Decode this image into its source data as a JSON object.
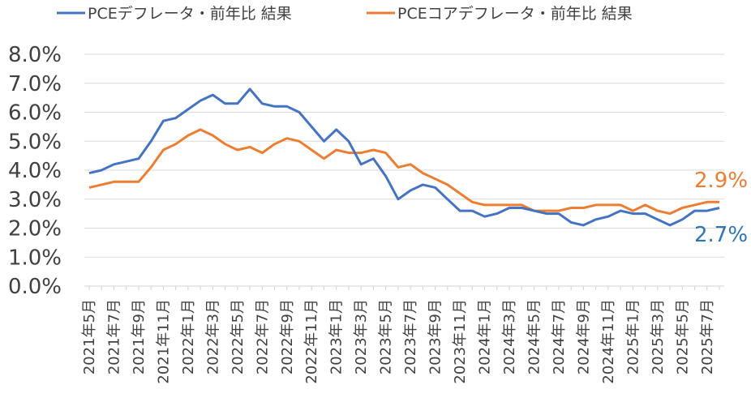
{
  "chart_data": {
    "type": "line",
    "title": "",
    "xlabel": "",
    "ylabel": "",
    "ylim": [
      0,
      8
    ],
    "y_ticks": [
      "0.0%",
      "1.0%",
      "2.0%",
      "3.0%",
      "4.0%",
      "5.0%",
      "6.0%",
      "7.0%",
      "8.0%"
    ],
    "grid": true,
    "legend_position": "top",
    "x_tick_labels": [
      "2021年5月",
      "2021年7月",
      "2021年9月",
      "2021年11月",
      "2022年1月",
      "2022年3月",
      "2022年5月",
      "2022年7月",
      "2022年9月",
      "2022年11月",
      "2023年1月",
      "2023年3月",
      "2023年5月",
      "2023年7月",
      "2023年9月",
      "2023年11月",
      "2024年1月",
      "2024年3月",
      "2024年5月",
      "2024年7月",
      "2024年9月",
      "2024年11月",
      "2025年1月",
      "2025年3月",
      "2025年5月",
      "2025年7月"
    ],
    "series": [
      {
        "name": "PCEデフレータ・前年比 結果",
        "color": "#4472C4",
        "end_label": "2.7%",
        "end_label_color": "#2E75B6",
        "values": [
          3.9,
          4.0,
          4.2,
          4.3,
          4.4,
          5.0,
          5.7,
          5.8,
          6.1,
          6.4,
          6.6,
          6.3,
          6.3,
          6.8,
          6.3,
          6.2,
          6.2,
          6.0,
          5.5,
          5.0,
          5.4,
          5.0,
          4.2,
          4.4,
          3.8,
          3.0,
          3.3,
          3.5,
          3.4,
          3.0,
          2.6,
          2.6,
          2.4,
          2.5,
          2.7,
          2.7,
          2.6,
          2.5,
          2.5,
          2.2,
          2.1,
          2.3,
          2.4,
          2.6,
          2.5,
          2.5,
          2.3,
          2.1,
          2.3,
          2.6,
          2.6,
          2.7
        ]
      },
      {
        "name": "PCEコアデフレータ・前年比 結果",
        "color": "#ED7D31",
        "end_label": "2.9%",
        "end_label_color": "#ED7D31",
        "values": [
          3.4,
          3.5,
          3.6,
          3.6,
          3.6,
          4.1,
          4.7,
          4.9,
          5.2,
          5.4,
          5.2,
          4.9,
          4.7,
          4.8,
          4.6,
          4.9,
          5.1,
          5.0,
          4.7,
          4.4,
          4.7,
          4.6,
          4.6,
          4.7,
          4.6,
          4.1,
          4.2,
          3.9,
          3.7,
          3.5,
          3.2,
          2.9,
          2.8,
          2.8,
          2.8,
          2.8,
          2.6,
          2.6,
          2.6,
          2.7,
          2.7,
          2.8,
          2.8,
          2.8,
          2.6,
          2.8,
          2.6,
          2.5,
          2.7,
          2.8,
          2.9,
          2.9
        ]
      }
    ]
  }
}
